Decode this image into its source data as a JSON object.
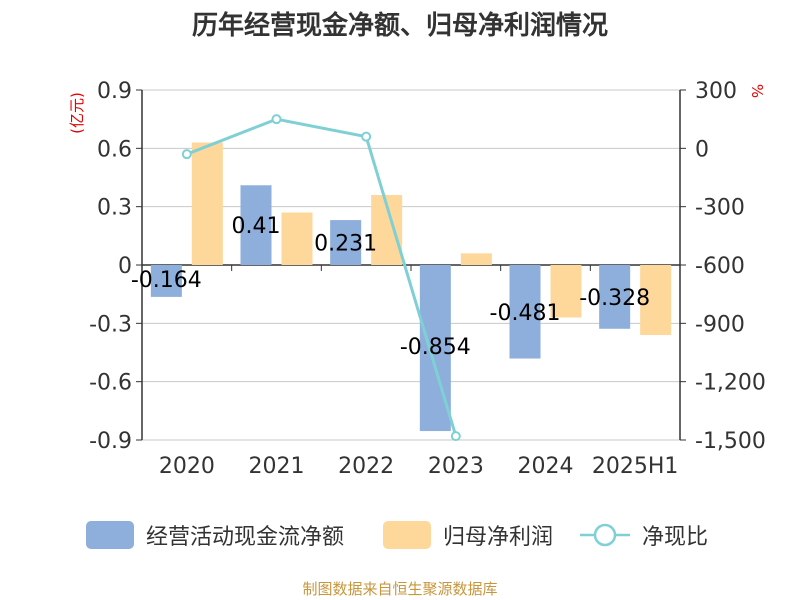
{
  "chart_data": {
    "type": "bar",
    "title": "历年经营现金净额、归母净利润情况",
    "categories": [
      "2020",
      "2021",
      "2022",
      "2023",
      "2024",
      "2025H1"
    ],
    "left_axis": {
      "unit": "(亿元)",
      "ylim": [
        -0.9,
        0.9
      ],
      "ticks": [
        0.9,
        0.6,
        0.3,
        0,
        -0.3,
        -0.6,
        -0.9
      ],
      "tick_labels": [
        "0.9",
        "0.6",
        "0.3",
        "0",
        "-0.3",
        "-0.6",
        "-0.9"
      ]
    },
    "right_axis": {
      "unit": "%",
      "ylim": [
        -1500,
        300
      ],
      "ticks": [
        300,
        0,
        -300,
        -600,
        -900,
        -1200,
        -1500
      ],
      "tick_labels": [
        "300",
        "0",
        "-300",
        "-600",
        "-900",
        "-1,200",
        "-1,500"
      ]
    },
    "series": [
      {
        "name": "经营活动现金流净额",
        "kind": "bar",
        "axis": "left",
        "color": "#8eaedb",
        "values": [
          -0.164,
          0.41,
          0.231,
          -0.854,
          -0.481,
          -0.328
        ],
        "labels": [
          "-0.164",
          "0.41",
          "0.231",
          "-0.854",
          "-0.481",
          "-0.328"
        ]
      },
      {
        "name": "归母净利润",
        "kind": "bar",
        "axis": "left",
        "color": "#fdd89a",
        "values": [
          0.63,
          0.27,
          0.36,
          0.06,
          -0.27,
          -0.36
        ]
      },
      {
        "name": "净现比",
        "kind": "line",
        "axis": "right",
        "color": "#7fd0d5",
        "values": [
          -30,
          150,
          60,
          -1480,
          null,
          null
        ]
      }
    ],
    "grid": true,
    "legend": "bottom"
  },
  "source": "制图数据来自恒生聚源数据库"
}
